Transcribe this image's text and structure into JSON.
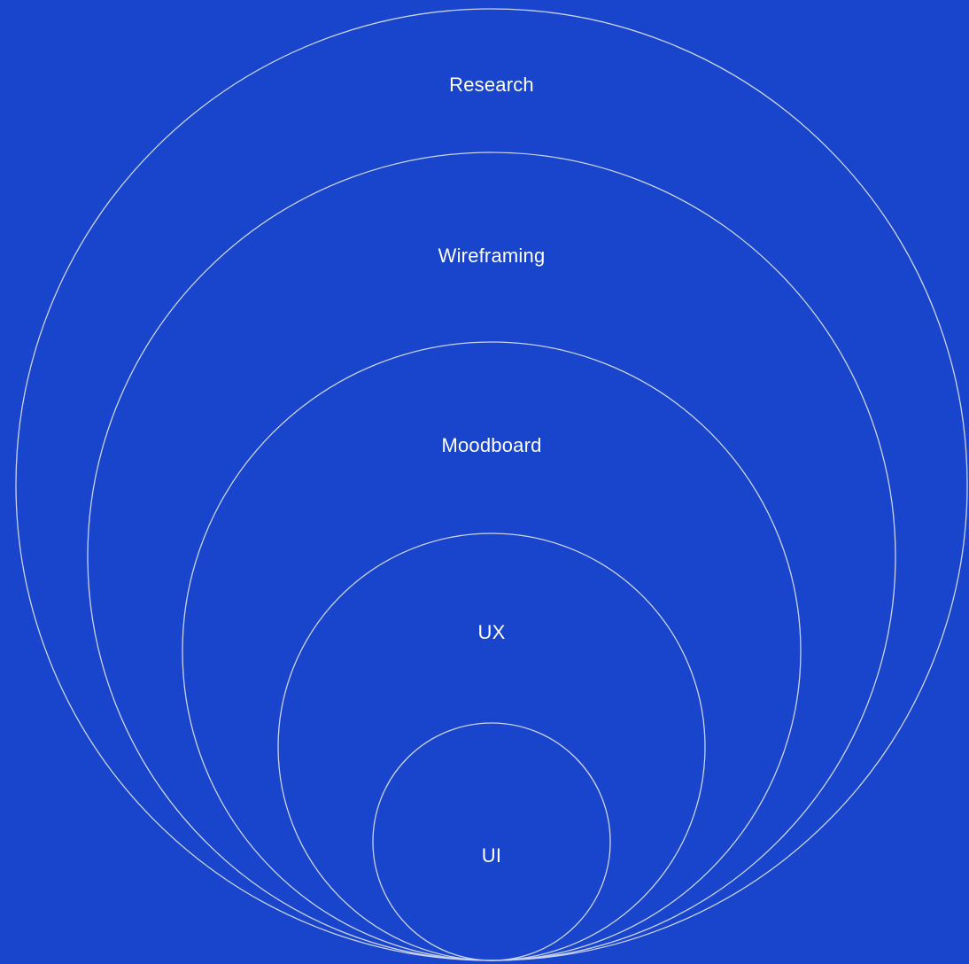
{
  "diagram": {
    "background_color": "#1944CC",
    "ring_color": "#C9D3F0",
    "text_color": "#FFFFFF",
    "layers": [
      {
        "label": "Research"
      },
      {
        "label": "Wireframing"
      },
      {
        "label": "Moodboard"
      },
      {
        "label": "UX"
      },
      {
        "label": "UI"
      }
    ]
  }
}
